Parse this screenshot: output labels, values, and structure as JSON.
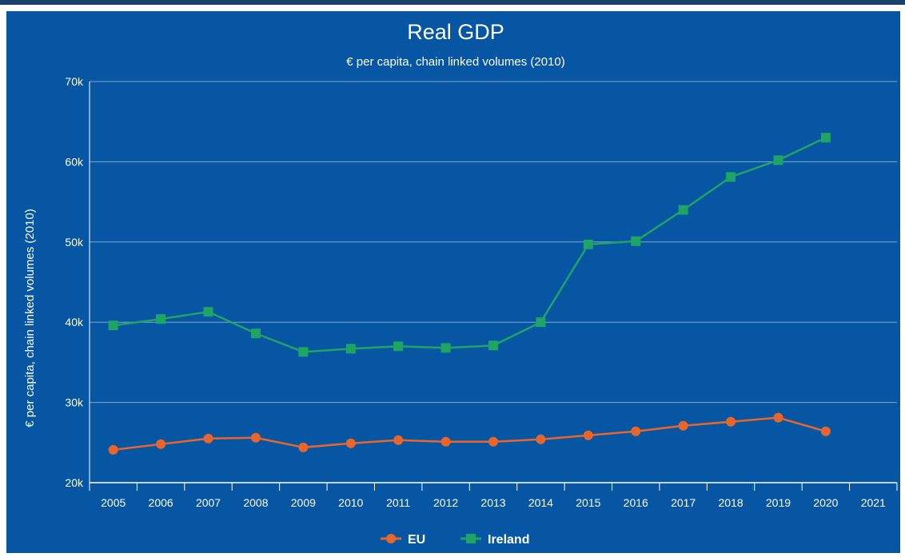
{
  "chart_data": {
    "type": "line",
    "title": "Real GDP",
    "subtitle": "€ per capita, chain linked volumes (2010)",
    "ylabel": "€ per capita, chain linked volumes (2010)",
    "xlabel": "",
    "categories": [
      "2005",
      "2006",
      "2007",
      "2008",
      "2009",
      "2010",
      "2011",
      "2012",
      "2013",
      "2014",
      "2015",
      "2016",
      "2017",
      "2018",
      "2019",
      "2020",
      "2021"
    ],
    "ylim": [
      20000,
      70000
    ],
    "yticks": [
      20000,
      30000,
      40000,
      50000,
      60000,
      70000
    ],
    "ytick_labels": [
      "20k",
      "30k",
      "40k",
      "50k",
      "60k",
      "70k"
    ],
    "grid": true,
    "legend_position": "bottom-center",
    "series": [
      {
        "name": "EU",
        "color": "#e8662c",
        "marker": "circle",
        "values": [
          24100,
          24800,
          25500,
          25600,
          24400,
          24900,
          25300,
          25100,
          25100,
          25400,
          25900,
          26400,
          27100,
          27600,
          28100,
          26400,
          null
        ]
      },
      {
        "name": "Ireland",
        "color": "#1fa463",
        "marker": "square",
        "values": [
          39600,
          40400,
          41300,
          38600,
          36300,
          36700,
          37000,
          36800,
          37100,
          40000,
          49700,
          50100,
          54000,
          58100,
          60200,
          63000,
          null
        ]
      }
    ]
  },
  "colors": {
    "background": "#0756a4",
    "top_bar": "#1c3f6b",
    "text": "#ffffff",
    "gridline": "#7fa6cf"
  }
}
